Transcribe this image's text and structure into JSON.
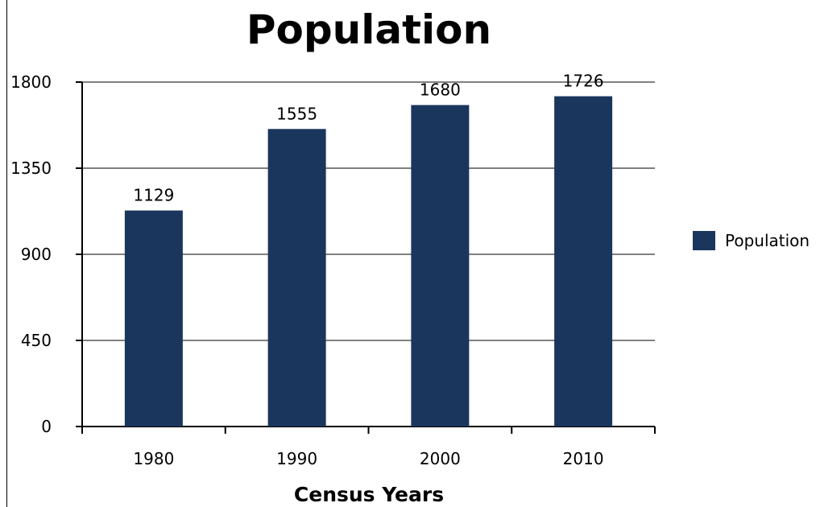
{
  "chart_data": {
    "type": "bar",
    "title": "Population",
    "xlabel": "Census Years",
    "ylabel": "",
    "categories": [
      "1980",
      "1990",
      "2000",
      "2010"
    ],
    "series": [
      {
        "name": "Population",
        "values": [
          1129,
          1555,
          1680,
          1726
        ]
      }
    ],
    "ylim": [
      0,
      1800
    ],
    "yticks": [
      0,
      450,
      900,
      1350,
      1800
    ],
    "grid": true,
    "legend": "right",
    "colors": {
      "bar": "#1b365d",
      "grid": "#808080",
      "axis": "#000000"
    }
  }
}
